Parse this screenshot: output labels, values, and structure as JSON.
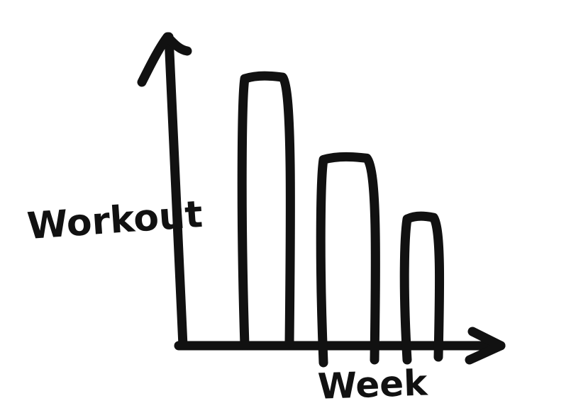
{
  "chart_data": {
    "type": "bar",
    "style": "hand-drawn sketch",
    "categories": [
      "",
      "",
      ""
    ],
    "values": [
      100,
      70,
      48
    ],
    "xlabel": "Week",
    "ylabel": "Workout",
    "title": "",
    "ylim": [
      0,
      115
    ],
    "grid": false,
    "legend": "none",
    "tick_labels": false,
    "ink_color": "#111111",
    "background": "#ffffff"
  }
}
